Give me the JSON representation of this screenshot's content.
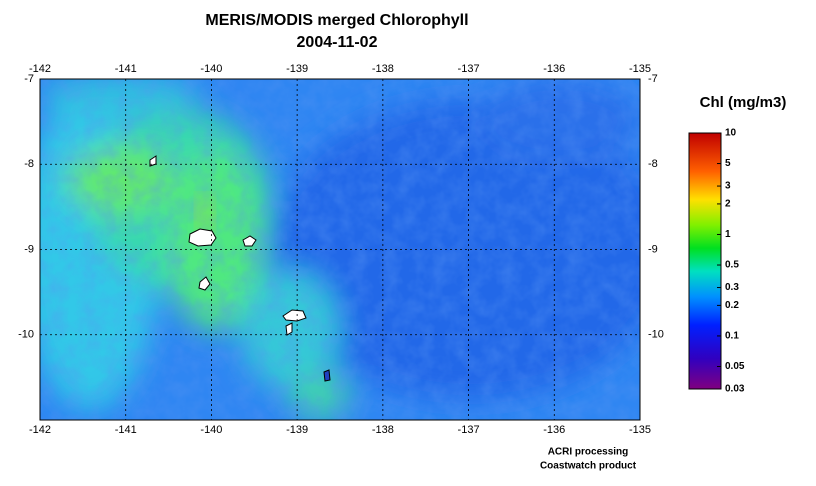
{
  "map": {
    "title": "MERIS/MODIS merged Chlorophyll",
    "date": "2004-11-02",
    "xlim": [
      -142,
      -135
    ],
    "ylim": [
      -7,
      -11
    ],
    "xticks": [
      -142,
      -141,
      -140,
      -139,
      -138,
      -137,
      -136,
      -135
    ],
    "yticks": [
      -7,
      -8,
      -9,
      -10
    ],
    "grid": true,
    "colorbar": {
      "title": "Chl (mg/m3)",
      "lim": [
        0.03,
        10
      ],
      "log": true,
      "ticks": [
        10,
        5,
        3,
        2,
        1,
        0.5,
        0.3,
        0.2,
        0.1,
        0.05,
        0.03
      ]
    },
    "credits": [
      "ACRI processing",
      "Coastwatch product"
    ]
  }
}
